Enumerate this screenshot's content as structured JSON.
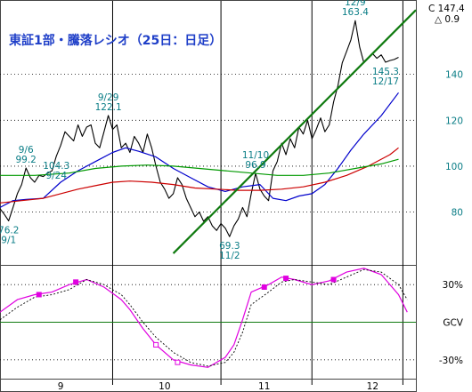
{
  "chart_data": {
    "type": "line",
    "title": "東証1部・騰落レシオ（25日：日足）",
    "header": {
      "current": "C 147.4",
      "change": "△ 0.9"
    },
    "upper_panel": {
      "yticks": [
        80,
        100,
        120,
        140
      ],
      "ylim": [
        57,
        172
      ],
      "series": [
        {
          "color": "#000000",
          "values": [
            [
              0,
              81.5
            ],
            [
              1,
              79
            ],
            [
              2,
              76.2
            ],
            [
              3,
              82
            ],
            [
              4,
              88
            ],
            [
              5,
              92
            ],
            [
              6,
              99.2
            ],
            [
              7,
              95
            ],
            [
              8,
              93
            ],
            [
              9,
              96
            ],
            [
              10,
              95.5
            ],
            [
              11,
              97
            ],
            [
              12,
              98
            ],
            [
              13,
              104.3
            ],
            [
              14,
              109
            ],
            [
              15,
              115
            ],
            [
              16,
              113
            ],
            [
              17,
              111
            ],
            [
              18,
              118
            ],
            [
              19,
              113
            ],
            [
              20,
              117
            ],
            [
              21,
              118
            ],
            [
              22,
              110
            ],
            [
              23,
              108
            ],
            [
              24,
              115
            ],
            [
              25,
              122.1
            ],
            [
              26,
              116
            ],
            [
              27,
              118
            ],
            [
              28,
              108
            ],
            [
              29,
              110
            ],
            [
              30,
              106
            ],
            [
              31,
              113
            ],
            [
              32,
              110
            ],
            [
              33,
              106
            ],
            [
              34,
              114
            ],
            [
              35,
              108
            ],
            [
              36,
              100
            ],
            [
              37,
              93
            ],
            [
              38,
              90
            ],
            [
              39,
              86
            ],
            [
              40,
              88
            ],
            [
              41,
              95
            ],
            [
              42,
              92
            ],
            [
              43,
              86
            ],
            [
              44,
              82
            ],
            [
              45,
              78
            ],
            [
              46,
              80
            ],
            [
              47,
              76
            ],
            [
              48,
              78
            ],
            [
              49,
              74
            ],
            [
              50,
              72
            ],
            [
              51,
              75
            ],
            [
              52,
              73
            ],
            [
              53,
              69.3
            ],
            [
              54,
              74
            ],
            [
              55,
              77
            ],
            [
              56,
              82
            ],
            [
              57,
              78
            ],
            [
              58,
              88
            ],
            [
              59,
              96.9
            ],
            [
              60,
              90
            ],
            [
              61,
              87
            ],
            [
              62,
              85
            ],
            [
              63,
              98
            ],
            [
              64,
              102
            ],
            [
              65,
              110
            ],
            [
              66,
              105
            ],
            [
              67,
              112
            ],
            [
              68,
              108
            ],
            [
              69,
              117
            ],
            [
              70,
              114
            ],
            [
              71,
              120
            ],
            [
              72,
              112
            ],
            [
              73,
              116
            ],
            [
              74,
              121
            ],
            [
              75,
              115
            ],
            [
              76,
              118
            ],
            [
              77,
              128
            ],
            [
              78,
              135
            ],
            [
              79,
              145
            ],
            [
              80,
              150
            ],
            [
              81,
              155
            ],
            [
              82,
              163.4
            ],
            [
              83,
              152
            ],
            [
              84,
              145
            ],
            [
              85,
              147
            ],
            [
              86,
              149
            ],
            [
              87,
              147
            ],
            [
              88,
              148.5
            ],
            [
              89,
              145.3
            ],
            [
              90,
              146
            ],
            [
              91,
              146.5
            ],
            [
              92,
              147.4
            ]
          ]
        },
        {
          "color": "#0000cc",
          "values": [
            [
              0,
              82
            ],
            [
              3,
              85
            ],
            [
              6,
              85.5
            ],
            [
              10,
              86
            ],
            [
              14,
              93
            ],
            [
              18,
              98
            ],
            [
              22,
              102
            ],
            [
              26,
              106
            ],
            [
              29,
              108
            ],
            [
              32,
              106.5
            ],
            [
              36,
              104
            ],
            [
              40,
              99
            ],
            [
              44,
              95
            ],
            [
              48,
              91
            ],
            [
              52,
              89
            ],
            [
              56,
              91
            ],
            [
              60,
              92
            ],
            [
              63,
              86
            ],
            [
              66,
              85
            ],
            [
              69,
              87
            ],
            [
              72,
              88
            ],
            [
              75,
              92
            ],
            [
              78,
              99
            ],
            [
              81,
              107
            ],
            [
              84,
              114
            ],
            [
              88,
              122
            ],
            [
              92,
              132
            ]
          ]
        },
        {
          "color": "#cc0000",
          "values": [
            [
              0,
              84
            ],
            [
              5,
              85
            ],
            [
              10,
              86
            ],
            [
              14,
              88
            ],
            [
              18,
              90
            ],
            [
              22,
              91.5
            ],
            [
              26,
              93
            ],
            [
              30,
              93.5
            ],
            [
              35,
              93
            ],
            [
              40,
              92
            ],
            [
              45,
              90.5
            ],
            [
              50,
              90
            ],
            [
              55,
              89.5
            ],
            [
              60,
              89.5
            ],
            [
              65,
              90
            ],
            [
              70,
              91
            ],
            [
              75,
              93
            ],
            [
              80,
              96
            ],
            [
              85,
              100
            ],
            [
              90,
              105
            ],
            [
              92,
              108
            ]
          ]
        },
        {
          "color": "#009900",
          "values": [
            [
              0,
              96
            ],
            [
              8,
              96
            ],
            [
              16,
              97
            ],
            [
              22,
              99
            ],
            [
              28,
              100
            ],
            [
              34,
              100.5
            ],
            [
              40,
              100
            ],
            [
              46,
              99
            ],
            [
              52,
              98
            ],
            [
              58,
              97
            ],
            [
              64,
              96
            ],
            [
              70,
              96
            ],
            [
              76,
              97
            ],
            [
              82,
              99
            ],
            [
              88,
              101
            ],
            [
              92,
              103
            ]
          ]
        }
      ],
      "trendline": {
        "color": "#0f7a0f",
        "points": [
          [
            40,
            62
          ],
          [
            96,
            168
          ]
        ]
      },
      "annotations": [
        {
          "lines": [
            "76.2",
            "9/1"
          ],
          "x": 2,
          "y": 76.2,
          "pos": "below"
        },
        {
          "lines": [
            "9/6",
            "99.2"
          ],
          "x": 6,
          "y": 99.2,
          "pos": "above"
        },
        {
          "lines": [
            "104.3",
            "9/24"
          ],
          "x": 13,
          "y": 104.3,
          "pos": "below"
        },
        {
          "lines": [
            "9/29",
            "122.1"
          ],
          "x": 25,
          "y": 122.1,
          "pos": "above"
        },
        {
          "lines": [
            "69.3",
            "11/2"
          ],
          "x": 53,
          "y": 69.3,
          "pos": "below"
        },
        {
          "lines": [
            "11/10",
            "96.9"
          ],
          "x": 59,
          "y": 96.9,
          "pos": "above"
        },
        {
          "lines": [
            "12/9",
            "163.4"
          ],
          "x": 82,
          "y": 163.4,
          "pos": "above"
        },
        {
          "lines": [
            "145.3",
            "12/17"
          ],
          "x": 89,
          "y": 145.3,
          "pos": "below"
        }
      ]
    },
    "lower_panel": {
      "yticks": [
        "30%",
        "GCV",
        "-30%"
      ],
      "tick_values": [
        30,
        0,
        -30
      ],
      "ylim": [
        -45,
        45
      ],
      "series": [
        {
          "color": "#e000e0",
          "values": [
            [
              0,
              8
            ],
            [
              4,
              18
            ],
            [
              8,
              22
            ],
            [
              12,
              24
            ],
            [
              16,
              30
            ],
            [
              20,
              34
            ],
            [
              24,
              28
            ],
            [
              28,
              18
            ],
            [
              30,
              10
            ],
            [
              33,
              -5
            ],
            [
              36,
              -18
            ],
            [
              40,
              -30
            ],
            [
              44,
              -34
            ],
            [
              48,
              -36
            ],
            [
              52,
              -28
            ],
            [
              54,
              -18
            ],
            [
              56,
              2
            ],
            [
              58,
              24
            ],
            [
              62,
              30
            ],
            [
              65,
              36
            ],
            [
              68,
              34
            ],
            [
              72,
              30
            ],
            [
              76,
              33
            ],
            [
              80,
              40
            ],
            [
              84,
              43
            ],
            [
              88,
              38
            ],
            [
              92,
              22
            ],
            [
              94,
              8
            ]
          ]
        },
        {
          "color": "#000000",
          "dash": "2,2",
          "values": [
            [
              0,
              2
            ],
            [
              4,
              12
            ],
            [
              8,
              20
            ],
            [
              12,
              22
            ],
            [
              16,
              26
            ],
            [
              20,
              34
            ],
            [
              24,
              30
            ],
            [
              28,
              22
            ],
            [
              30,
              14
            ],
            [
              33,
              0
            ],
            [
              36,
              -12
            ],
            [
              40,
              -24
            ],
            [
              44,
              -32
            ],
            [
              48,
              -35
            ],
            [
              52,
              -32
            ],
            [
              54,
              -24
            ],
            [
              56,
              -8
            ],
            [
              58,
              14
            ],
            [
              62,
              24
            ],
            [
              65,
              32
            ],
            [
              68,
              34
            ],
            [
              72,
              32
            ],
            [
              76,
              30
            ],
            [
              80,
              36
            ],
            [
              84,
              42
            ],
            [
              88,
              40
            ],
            [
              92,
              30
            ],
            [
              94,
              18
            ]
          ]
        }
      ],
      "markers": [
        {
          "x": 9,
          "y": 22,
          "fill": "#e000e0"
        },
        {
          "x": 17.5,
          "y": 32,
          "fill": "#e000e0"
        },
        {
          "x": 36,
          "y": -18,
          "fill": "#ffffff"
        },
        {
          "x": 41,
          "y": -32,
          "fill": "#ffffff"
        },
        {
          "x": 61,
          "y": 28,
          "fill": "#e000e0"
        },
        {
          "x": 66,
          "y": 35,
          "fill": "#e000e0"
        },
        {
          "x": 77,
          "y": 34,
          "fill": "#e000e0"
        }
      ]
    },
    "x_axis": {
      "range": [
        0,
        96
      ],
      "boundaries": [
        26,
        51,
        72,
        93
      ],
      "labels": [
        {
          "text": "9",
          "x": 14
        },
        {
          "text": "10",
          "x": 38
        },
        {
          "text": "11",
          "x": 61
        },
        {
          "text": "12",
          "x": 86
        }
      ]
    }
  }
}
